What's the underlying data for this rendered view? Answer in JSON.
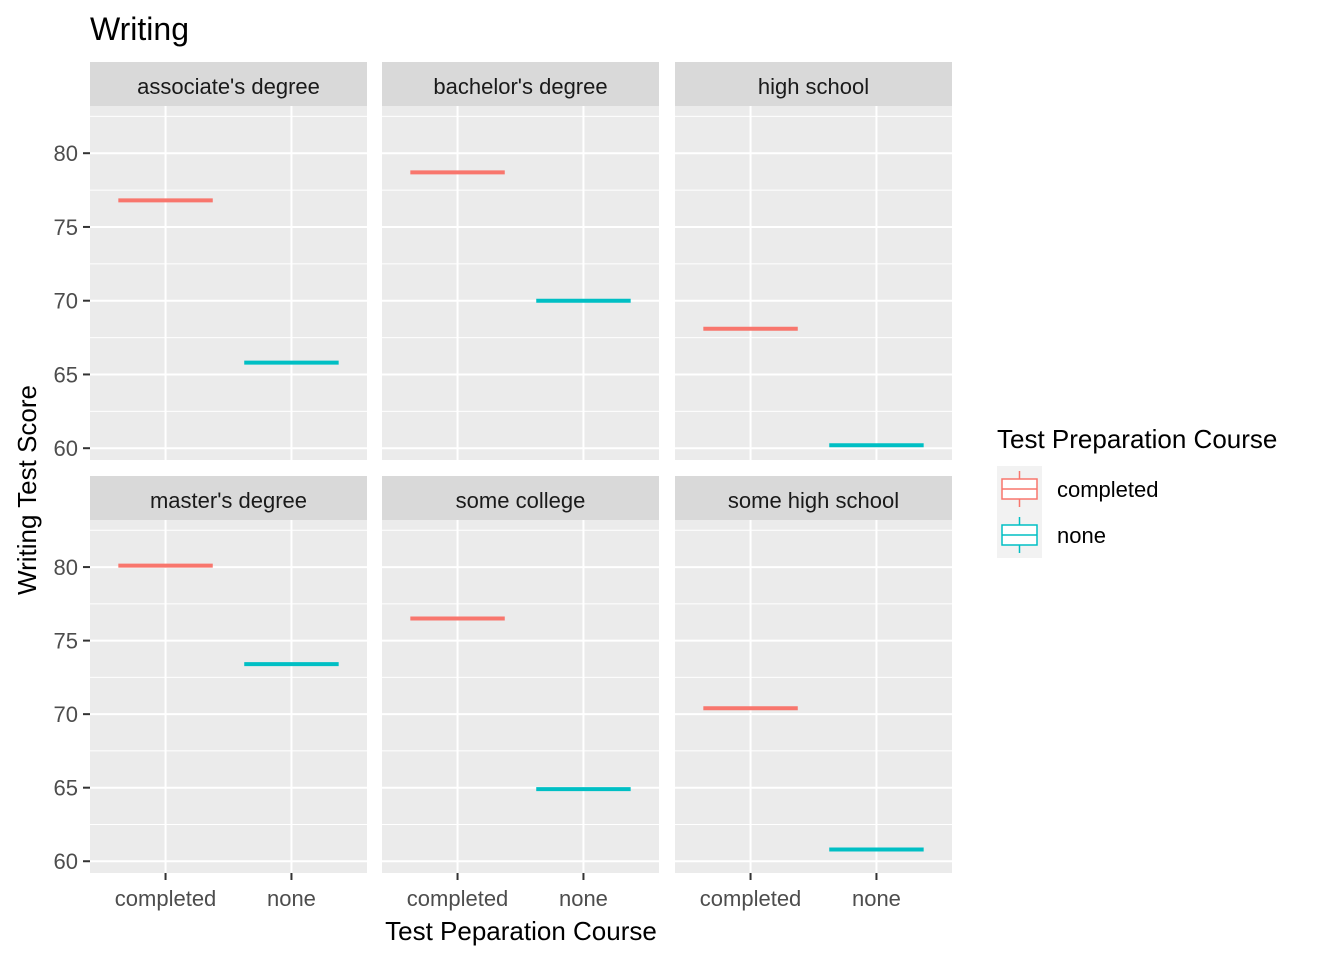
{
  "chart_data": {
    "type": "box",
    "title": "Writing",
    "xlabel": "Test Peparation Course",
    "ylabel": "Writing Test Score",
    "ylim": [
      59.2,
      83.2
    ],
    "yticks": [
      60,
      65,
      70,
      75,
      80
    ],
    "categories": [
      "completed",
      "none"
    ],
    "grid": true,
    "legend": {
      "title": "Test Preparation Course",
      "position": "right",
      "entries": [
        {
          "name": "completed",
          "color": "#F8766D"
        },
        {
          "name": "none",
          "color": "#00BFC4"
        }
      ]
    },
    "facets": [
      {
        "label": "associate's degree",
        "values": {
          "completed": 76.8,
          "none": 65.8
        }
      },
      {
        "label": "bachelor's degree",
        "values": {
          "completed": 78.7,
          "none": 70.0
        }
      },
      {
        "label": "high school",
        "values": {
          "completed": 68.1,
          "none": 60.2
        }
      },
      {
        "label": "master's degree",
        "values": {
          "completed": 80.1,
          "none": 73.4
        }
      },
      {
        "label": "some college",
        "values": {
          "completed": 76.5,
          "none": 64.9
        }
      },
      {
        "label": "some high school",
        "values": {
          "completed": 70.4,
          "none": 60.8
        }
      }
    ]
  }
}
